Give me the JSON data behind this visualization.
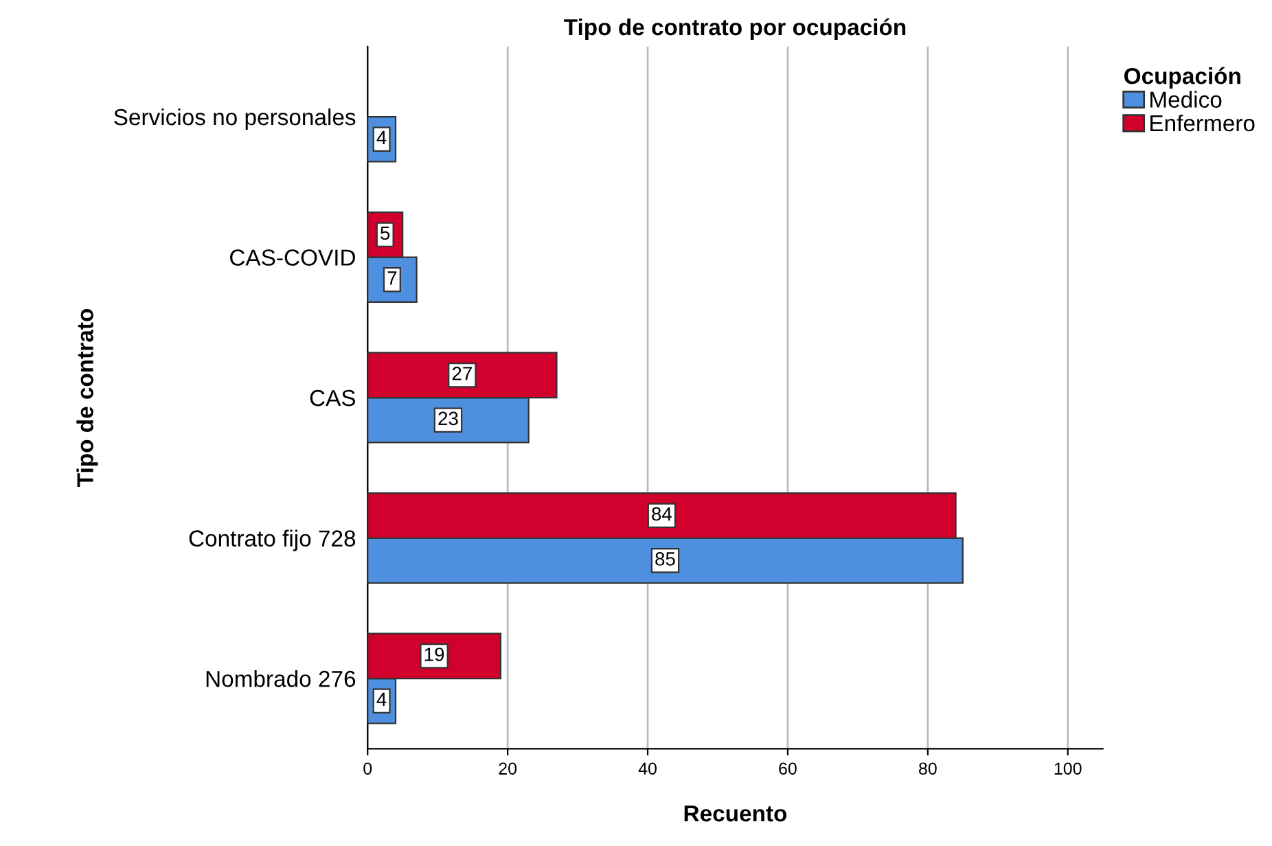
{
  "chart_data": {
    "type": "bar",
    "orientation": "horizontal",
    "title": "Tipo de contrato por ocupación",
    "xlabel": "Recuento",
    "ylabel": "Tipo de contrato",
    "legend_title": "Ocupación",
    "categories": [
      "Servicios no personales",
      "CAS-COVID",
      "CAS",
      "Contrato fijo 728",
      "Nombrado 276"
    ],
    "series": [
      {
        "name": "Medico",
        "color": "#4f8fdf",
        "values": [
          4,
          7,
          23,
          85,
          4
        ]
      },
      {
        "name": "Enfermero",
        "color": "#d2002d",
        "values": [
          null,
          5,
          27,
          84,
          19
        ]
      }
    ],
    "xlim": [
      0,
      105
    ],
    "xticks": [
      0,
      20,
      40,
      60,
      80,
      100
    ],
    "grid": "x",
    "legend": "top right",
    "data_labels": true
  }
}
